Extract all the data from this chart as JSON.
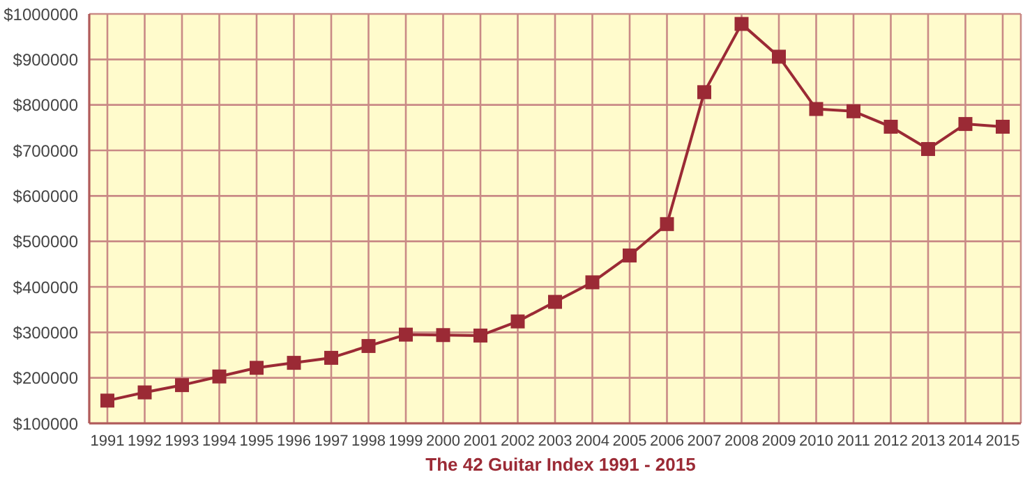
{
  "chart_data": {
    "type": "line",
    "title": "The 42 Guitar Index 1991 - 2015",
    "categories": [
      "1991",
      "1992",
      "1993",
      "1994",
      "1995",
      "1996",
      "1997",
      "1998",
      "1999",
      "2000",
      "2001",
      "2002",
      "2003",
      "2004",
      "2005",
      "2006",
      "2007",
      "2008",
      "2009",
      "2010",
      "2011",
      "2012",
      "2013",
      "2014",
      "2015"
    ],
    "series": [
      {
        "color": "#9b2a35",
        "values": [
          150000,
          168000,
          184000,
          203000,
          222000,
          233000,
          244000,
          270000,
          295000,
          294000,
          293000,
          324000,
          367000,
          410000,
          469000,
          538000,
          828000,
          978000,
          906000,
          791000,
          786000,
          752000,
          703000,
          758000,
          752000
        ]
      }
    ],
    "ylim": [
      100000,
      1000000
    ],
    "yticks": [
      {
        "value": 100000,
        "label": "$100000"
      },
      {
        "value": 200000,
        "label": "$200000"
      },
      {
        "value": 300000,
        "label": "$300000"
      },
      {
        "value": 400000,
        "label": "$400000"
      },
      {
        "value": 500000,
        "label": "$500000"
      },
      {
        "value": 600000,
        "label": "$600000"
      },
      {
        "value": 700000,
        "label": "$700000"
      },
      {
        "value": 800000,
        "label": "$800000"
      },
      {
        "value": 900000,
        "label": "$900000"
      },
      {
        "value": 1000000,
        "label": "$1000000"
      }
    ],
    "grid": true,
    "legend": false,
    "marker": "square",
    "line_style": "solid"
  }
}
